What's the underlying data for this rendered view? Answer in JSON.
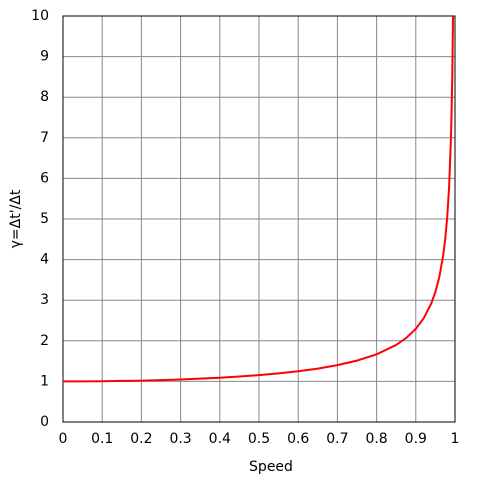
{
  "chart_data": {
    "type": "line",
    "xlabel": "Speed",
    "ylabel": "γ=Δt'/Δt",
    "x": [
      0,
      0.05,
      0.1,
      0.15,
      0.2,
      0.25,
      0.3,
      0.35,
      0.4,
      0.45,
      0.5,
      0.55,
      0.6,
      0.65,
      0.7,
      0.75,
      0.8,
      0.85,
      0.875,
      0.9,
      0.92,
      0.94,
      0.95,
      0.96,
      0.97,
      0.975,
      0.98,
      0.985,
      0.99,
      0.993,
      0.995
    ],
    "series": [
      {
        "color": "#ff0000",
        "values": [
          1,
          1.0013,
          1.005,
          1.0114,
          1.0206,
          1.0328,
          1.0483,
          1.0675,
          1.0911,
          1.1198,
          1.1547,
          1.1974,
          1.25,
          1.3159,
          1.4003,
          1.5119,
          1.6667,
          1.8983,
          2.0656,
          2.2942,
          2.5516,
          2.931,
          3.2026,
          3.5714,
          4.1134,
          4.5004,
          5.0252,
          5.7916,
          7.0888,
          8.4665,
          10
        ]
      }
    ],
    "xlim": [
      0,
      1
    ],
    "xticks": [
      0,
      0.1,
      0.2,
      0.3,
      0.4,
      0.5,
      0.6,
      0.7,
      0.8,
      0.9,
      1
    ],
    "ylim": [
      0,
      10
    ],
    "yticks": [
      0,
      1,
      2,
      3,
      4,
      5,
      6,
      7,
      8,
      9,
      10
    ],
    "grid": true
  }
}
